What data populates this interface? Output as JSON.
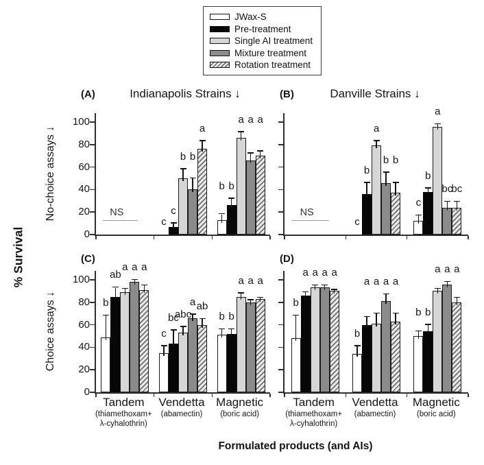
{
  "colors": {
    "axis": "#2e2e2e",
    "light_gray": "#d6d6d6",
    "dark_gray": "#8b8b8b",
    "hatch_bg": "#e9e9e9",
    "hatch_line": "#6e6e6e",
    "ns_line": "#9a9a9a",
    "bar_border": "#1b1b1b"
  },
  "chart_data": {
    "type": "bar",
    "title": "",
    "ylabel": "% Survival",
    "xlabel": "Formulated products (and AIs)",
    "row_labels": [
      "No-choice assays ↓",
      "Choice assays ↓"
    ],
    "col_titles": [
      "Indianapolis Strains ↓",
      "Danville Strains ↓"
    ],
    "yticks": [
      0,
      20,
      40,
      60,
      80,
      100
    ],
    "ylim": [
      0,
      108
    ],
    "legend_position": "top-center",
    "series": [
      {
        "name": "JWax-S",
        "fill": "white"
      },
      {
        "name": "Pre-treatment",
        "fill": "black"
      },
      {
        "name": "Single AI treatment",
        "fill": "light-gray"
      },
      {
        "name": "Mixture treatment",
        "fill": "dark-gray"
      },
      {
        "name": "Rotation treatment",
        "fill": "diagonal-hatch"
      }
    ],
    "categories": [
      {
        "product": "Tandem",
        "ai": [
          "(thiamethoxam+",
          "λ-cyhalothrin)"
        ]
      },
      {
        "product": "Vendetta",
        "ai": [
          "(abamectin)"
        ]
      },
      {
        "product": "Magnetic",
        "ai": [
          "(boric acid)"
        ]
      }
    ],
    "panels": [
      {
        "tag": "(A)",
        "strain": "Indianapolis",
        "assay": "No-choice",
        "groups": [
          {
            "category": "Tandem",
            "ns": "NS",
            "ns_y": 12
          },
          {
            "category": "Vendetta",
            "values": [
              0,
              7,
              50,
              40,
              76
            ],
            "errors": [
              0,
              3,
              8,
              10,
              7
            ],
            "letters": [
              "c",
              "c",
              "b",
              "b",
              "a"
            ]
          },
          {
            "category": "Magnetic",
            "values": [
              13,
              26,
              86,
              66,
              70
            ],
            "errors": [
              5,
              6,
              5,
              6,
              4
            ],
            "letters": [
              "b",
              "b",
              "a",
              "a",
              "a"
            ]
          }
        ]
      },
      {
        "tag": "(B)",
        "strain": "Danville",
        "assay": "No-choice",
        "groups": [
          {
            "category": "Tandem",
            "ns": "NS",
            "ns_y": 12
          },
          {
            "category": "Vendetta",
            "values": [
              0,
              36,
              79,
              46,
              37
            ],
            "errors": [
              0,
              10,
              4,
              9,
              9
            ],
            "letters": [
              "c",
              "b",
              "a",
              "b",
              "b"
            ]
          },
          {
            "category": "Magnetic",
            "values": [
              12,
              38,
              96,
              24,
              24
            ],
            "errors": [
              5,
              3,
              2,
              5,
              5
            ],
            "letters": [
              "c",
              "b",
              "a",
              "bc",
              "bc"
            ]
          }
        ]
      },
      {
        "tag": "(C)",
        "strain": "Indianapolis",
        "assay": "Choice",
        "groups": [
          {
            "category": "Tandem",
            "values": [
              49,
              85,
              89,
              98,
              91
            ],
            "errors": [
              19,
              8,
              3,
              2,
              4
            ],
            "letters": [
              "b",
              "ab",
              "a",
              "a",
              "a"
            ]
          },
          {
            "category": "Vendetta",
            "values": [
              35,
              43,
              53,
              66,
              60
            ],
            "errors": [
              6,
              12,
              5,
              3,
              5
            ],
            "letters": [
              "c",
              "bc",
              "abc",
              "a",
              "ab"
            ]
          },
          {
            "category": "Magnetic",
            "values": [
              51,
              52,
              85,
              80,
              83
            ],
            "errors": [
              5,
              4,
              3,
              2,
              1
            ],
            "letters": [
              "b",
              "b",
              "a",
              "a",
              "a"
            ]
          }
        ]
      },
      {
        "tag": "(D)",
        "strain": "Danville",
        "assay": "Choice",
        "groups": [
          {
            "category": "Tandem",
            "values": [
              48,
              86,
              93,
              93,
              90
            ],
            "errors": [
              20,
              3,
              2,
              2,
              1
            ],
            "letters": [
              "b",
              "a",
              "a",
              "a",
              "a"
            ]
          },
          {
            "category": "Vendetta",
            "values": [
              34,
              60,
              61,
              81,
              63
            ],
            "errors": [
              7,
              7,
              9,
              6,
              7
            ],
            "letters": [
              "b",
              "a",
              "a",
              "a",
              "a"
            ]
          },
          {
            "category": "Magnetic",
            "values": [
              50,
              54,
              90,
              96,
              80
            ],
            "errors": [
              4,
              6,
              2,
              2,
              4
            ],
            "letters": [
              "b",
              "b",
              "a",
              "a",
              "a"
            ]
          }
        ]
      }
    ]
  }
}
